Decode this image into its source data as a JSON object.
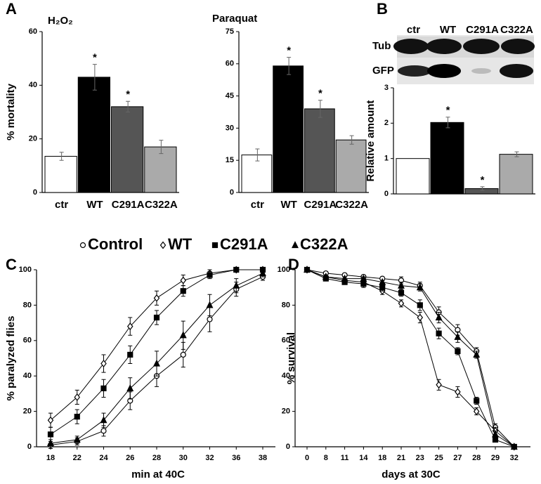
{
  "chart_data": [
    {
      "type": "bar",
      "panel": "A",
      "title": "H₂O₂",
      "y_label": "% mortality",
      "categories": [
        "ctr",
        "WT",
        "C291A",
        "C322A"
      ],
      "values": [
        13.5,
        43,
        32,
        17
      ],
      "errors": [
        1.5,
        4.8,
        2,
        2.5
      ],
      "significance": [
        null,
        "*",
        "*",
        null
      ],
      "colors": [
        "#ffffff",
        "#000000",
        "#555555",
        "#aaaaaa"
      ],
      "ylim": [
        0,
        60
      ],
      "yticks": [
        0,
        20,
        40,
        60
      ]
    },
    {
      "type": "bar",
      "title": "Paraquat",
      "categories": [
        "ctr",
        "WT",
        "C291A",
        "C322A"
      ],
      "values": [
        17.5,
        59,
        39,
        24.5
      ],
      "errors": [
        2.8,
        4,
        4,
        2
      ],
      "significance": [
        null,
        "*",
        "*",
        null
      ],
      "colors": [
        "#ffffff",
        "#000000",
        "#555555",
        "#aaaaaa"
      ],
      "ylim": [
        0,
        75
      ],
      "yticks": [
        0,
        15,
        30,
        45,
        60,
        75
      ]
    },
    {
      "type": "bar",
      "panel": "B",
      "y_label": "Relative amount",
      "blot_rows": [
        "Tub",
        "GFP"
      ],
      "categories": [
        "ctr",
        "WT",
        "C291A",
        "C322A"
      ],
      "values": [
        1.0,
        2.02,
        0.15,
        1.12
      ],
      "errors": [
        0,
        0.15,
        0.05,
        0.07
      ],
      "significance": [
        null,
        "*",
        "*",
        null
      ],
      "colors": [
        "#ffffff",
        "#000000",
        "#555555",
        "#aaaaaa"
      ],
      "ylim": [
        0,
        3
      ],
      "yticks": [
        0,
        1,
        2,
        3
      ]
    },
    {
      "type": "line",
      "panel": "C",
      "x_label": "min at 40C",
      "y_label": "% paralyzed flies",
      "categories": [
        "18",
        "22",
        "24",
        "26",
        "28",
        "30",
        "32",
        "36",
        "38"
      ],
      "series": [
        {
          "name": "Control",
          "marker": "circle-open",
          "color": "#000000",
          "values": [
            1,
            3,
            9,
            26,
            40,
            52,
            72,
            89,
            96
          ],
          "errors": [
            2,
            2,
            3,
            5,
            6,
            7,
            7,
            4,
            2
          ]
        },
        {
          "name": "WT",
          "marker": "diamond-open",
          "color": "#000000",
          "values": [
            15,
            28,
            47,
            68,
            84,
            94,
            98,
            100,
            100
          ],
          "errors": [
            4,
            4,
            5,
            5,
            4,
            3,
            2,
            1,
            1
          ]
        },
        {
          "name": "C291A",
          "marker": "square",
          "color": "#000000",
          "values": [
            7,
            17,
            33,
            52,
            73,
            88,
            97,
            100,
            100
          ],
          "errors": [
            4,
            4,
            5,
            5,
            4,
            3,
            2,
            1,
            1
          ]
        },
        {
          "name": "C322A",
          "marker": "triangle",
          "color": "#000000",
          "values": [
            2,
            4,
            15,
            33,
            47,
            63,
            80,
            91,
            98
          ],
          "errors": [
            2,
            2,
            4,
            6,
            7,
            8,
            6,
            4,
            2
          ]
        }
      ],
      "ylim": [
        0,
        100
      ],
      "yticks": [
        0,
        20,
        40,
        60,
        80,
        100
      ]
    },
    {
      "type": "line",
      "panel": "D",
      "x_label": "days at 30C",
      "y_label": "% survival",
      "categories": [
        "0",
        "8",
        "11",
        "14",
        "18",
        "21",
        "23",
        "25",
        "27",
        "28",
        "29",
        "32"
      ],
      "series": [
        {
          "name": "Control",
          "marker": "circle-open",
          "color": "#000000",
          "values": [
            100,
            98,
            97,
            96,
            95,
            94,
            91,
            76,
            66,
            54,
            11,
            0
          ],
          "errors": [
            1,
            1,
            1,
            1,
            1,
            2,
            2,
            3,
            3,
            2,
            2,
            0
          ]
        },
        {
          "name": "WT",
          "marker": "diamond-open",
          "color": "#000000",
          "values": [
            100,
            96,
            94,
            93,
            88,
            81,
            73,
            35,
            31,
            20,
            9,
            0
          ],
          "errors": [
            1,
            1,
            2,
            2,
            2,
            2,
            3,
            3,
            3,
            2,
            2,
            0
          ]
        },
        {
          "name": "C291A",
          "marker": "square",
          "color": "#000000",
          "values": [
            100,
            95,
            93,
            92,
            90,
            87,
            80,
            64,
            54,
            26,
            4,
            0
          ],
          "errors": [
            1,
            1,
            1,
            2,
            2,
            2,
            3,
            3,
            2,
            2,
            1,
            0
          ]
        },
        {
          "name": "C322A",
          "marker": "triangle",
          "color": "#000000",
          "values": [
            100,
            96,
            95,
            95,
            93,
            91,
            90,
            73,
            62,
            52,
            7,
            0
          ],
          "errors": [
            1,
            1,
            1,
            1,
            1,
            2,
            2,
            3,
            3,
            2,
            2,
            0
          ]
        }
      ],
      "ylim": [
        0,
        100
      ],
      "yticks": [
        0,
        20,
        40,
        60,
        80,
        100
      ]
    }
  ]
}
